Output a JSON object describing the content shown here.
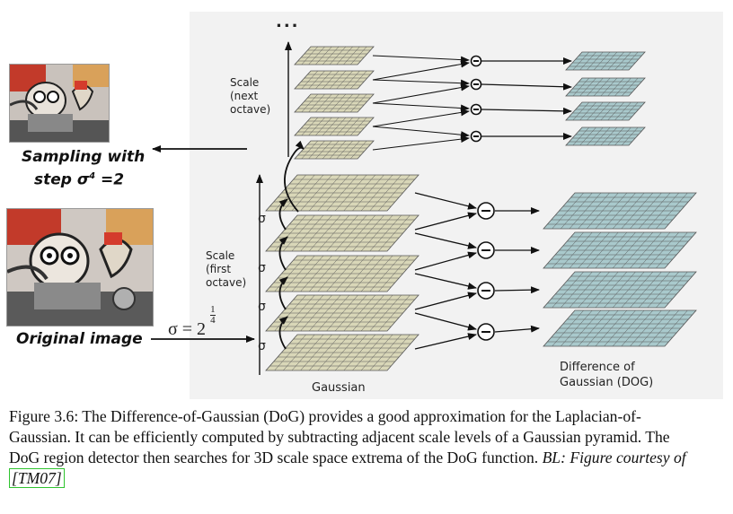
{
  "figure": {
    "top_dots": "...",
    "scale_next_octave": [
      "Scale",
      "(next",
      "octave)"
    ],
    "scale_first_octave": [
      "Scale",
      "(first",
      "octave)"
    ],
    "sigma_symbol": "σ",
    "sigma_init_base": "σ = 2",
    "sigma_init_exp_num": "1",
    "sigma_init_exp_den": "4",
    "gaussian_label": "Gaussian",
    "dog_label_line1": "Difference of",
    "dog_label_line2": "Gaussian (DOG)",
    "sampling_line1": "Sampling with",
    "sampling_line2_prefix": "step σ",
    "sampling_line2_sup": "4",
    "sampling_line2_suffix": " =2",
    "original_label": "Original image",
    "minus_symbol": "−"
  },
  "caption": {
    "text_main": "Figure 3.6: The Difference-of-Gaussian (DoG) provides a good approximation for the Laplacian-of-Gaussian. It can be efficiently computed by subtracting adjacent scale levels of a Gaussian pyramid. The DoG region detector then searches for 3D scale space extrema of the DoG function. ",
    "text_italic": "BL: Figure courtesy of ",
    "citation": "[TM07]"
  },
  "colors": {
    "gaussian_fill": "#d9d7b8",
    "dog_fill": "#a9c9cc",
    "grid_line": "#555555",
    "panel_bg": "#f2f2f2"
  }
}
